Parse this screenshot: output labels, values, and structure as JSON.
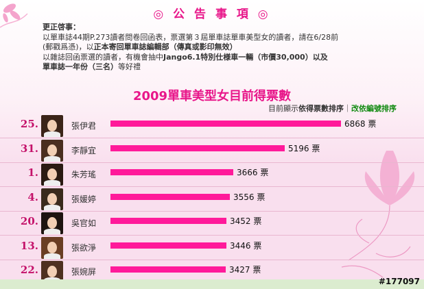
{
  "notice": {
    "title": "◎ 公 告 事 項 ◎",
    "heading": "更正啓事：",
    "line1": "以單車誌44期P.273讀者問卷回函表，票選第３屆單車誌單車美型女的讀者，請在6/28前",
    "line2a": "(郵戳爲憑)，以",
    "line2b": "正本寄回單車誌編輯部",
    "line2c": "（傳真或影印無效）",
    "line3a": "以雜誌回函票選的讀者，有機會抽中",
    "line3b": "Jango6.1特別仕様車一輛（市價30,000）以及",
    "line4a": "單車誌一年份（三名）",
    "line4b": "等好禮"
  },
  "chart_title": "2009單車美型女目前得票數",
  "sort": {
    "prefix": "目前顯示",
    "current": "依得票數排序",
    "separator": "｜",
    "alternate": "改依編號排序"
  },
  "chart_data": {
    "type": "bar",
    "title": "2009單車美型女目前得票數",
    "unit": "票",
    "categories": [
      "張伊君",
      "李靜宜",
      "朱芳瑤",
      "張媛婷",
      "吳官如",
      "張欲淨",
      "張婉屏"
    ],
    "numbers": [
      "25.",
      "31.",
      "1.",
      "4.",
      "20.",
      "13.",
      "22."
    ],
    "values": [
      6868,
      5196,
      3666,
      3556,
      3452,
      3446,
      3427
    ],
    "bar_color": "#ff1a9a"
  },
  "watermark": "#177097",
  "colors": {
    "accent": "#e8178a",
    "bar": "#ff1a9a",
    "rank": "#c4126a",
    "alt_link": "#118a11"
  }
}
